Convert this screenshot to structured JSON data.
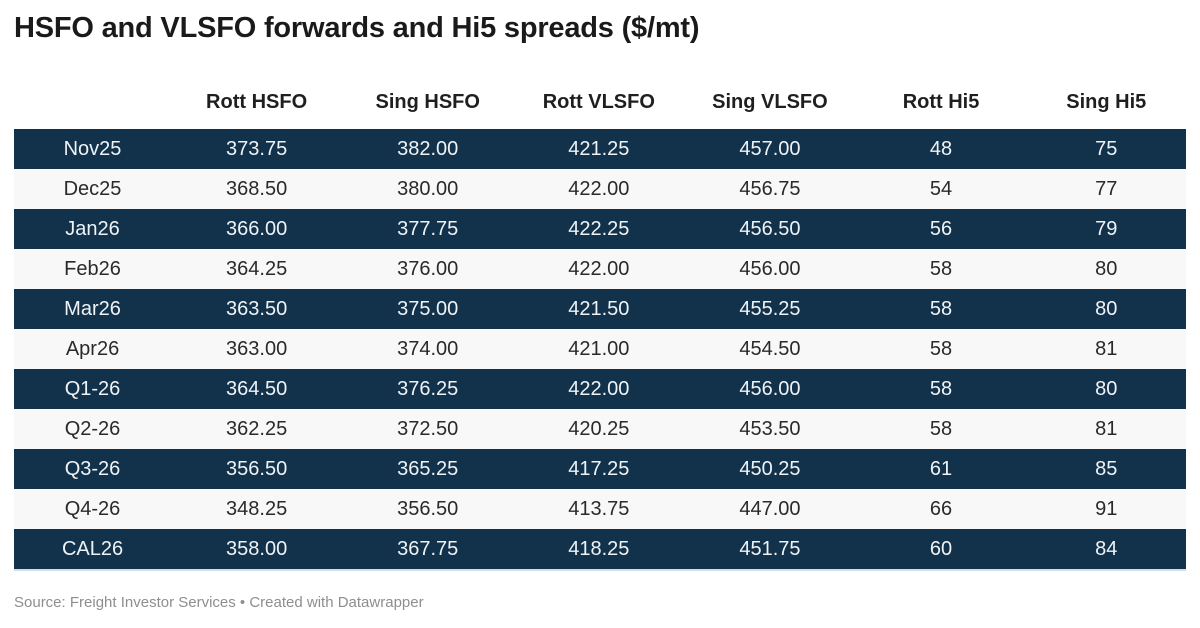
{
  "title": "HSFO and VLSFO forwards and Hi5 spreads ($/mt)",
  "table": {
    "columns": [
      "",
      "Rott HSFO",
      "Sing HSFO",
      "Rott VLSFO",
      "Sing VLSFO",
      "Rott Hi5",
      "Sing Hi5"
    ],
    "rows": [
      {
        "label": "Nov25",
        "values": [
          "373.75",
          "382.00",
          "421.25",
          "457.00",
          "48",
          "75"
        ]
      },
      {
        "label": "Dec25",
        "values": [
          "368.50",
          "380.00",
          "422.00",
          "456.75",
          "54",
          "77"
        ]
      },
      {
        "label": "Jan26",
        "values": [
          "366.00",
          "377.75",
          "422.25",
          "456.50",
          "56",
          "79"
        ]
      },
      {
        "label": "Feb26",
        "values": [
          "364.25",
          "376.00",
          "422.00",
          "456.00",
          "58",
          "80"
        ]
      },
      {
        "label": "Mar26",
        "values": [
          "363.50",
          "375.00",
          "421.50",
          "455.25",
          "58",
          "80"
        ]
      },
      {
        "label": "Apr26",
        "values": [
          "363.00",
          "374.00",
          "421.00",
          "454.50",
          "58",
          "81"
        ]
      },
      {
        "label": "Q1-26",
        "values": [
          "364.50",
          "376.25",
          "422.00",
          "456.00",
          "58",
          "80"
        ]
      },
      {
        "label": "Q2-26",
        "values": [
          "362.25",
          "372.50",
          "420.25",
          "453.50",
          "58",
          "81"
        ]
      },
      {
        "label": "Q3-26",
        "values": [
          "356.50",
          "365.25",
          "417.25",
          "450.25",
          "61",
          "85"
        ]
      },
      {
        "label": "Q4-26",
        "values": [
          "348.25",
          "356.50",
          "413.75",
          "447.00",
          "66",
          "91"
        ]
      },
      {
        "label": "CAL26",
        "values": [
          "358.00",
          "367.75",
          "418.25",
          "451.75",
          "60",
          "84"
        ]
      }
    ]
  },
  "footer": {
    "text": "Source: Freight Investor Services • Created with Datawrapper"
  },
  "colors": {
    "dark_row_bg": "#12314a",
    "dark_row_text": "#eef3f7",
    "light_row_bg": "#f8f8f8",
    "light_row_text": "#2a2a2a",
    "title_color": "#1a1a1a",
    "header_text": "#1f1f1f",
    "footer_color": "#8e8e8e",
    "table_bottom_border": "#d3dfe6"
  },
  "chart_data": {
    "type": "table",
    "title": "HSFO and VLSFO forwards and Hi5 spreads ($/mt)",
    "columns": [
      "",
      "Rott HSFO",
      "Sing HSFO",
      "Rott VLSFO",
      "Sing VLSFO",
      "Rott Hi5",
      "Sing Hi5"
    ],
    "rows": [
      [
        "Nov25",
        373.75,
        382.0,
        421.25,
        457.0,
        48,
        75
      ],
      [
        "Dec25",
        368.5,
        380.0,
        422.0,
        456.75,
        54,
        77
      ],
      [
        "Jan26",
        366.0,
        377.75,
        422.25,
        456.5,
        56,
        79
      ],
      [
        "Feb26",
        364.25,
        376.0,
        422.0,
        456.0,
        58,
        80
      ],
      [
        "Mar26",
        363.5,
        375.0,
        421.5,
        455.25,
        58,
        80
      ],
      [
        "Apr26",
        363.0,
        374.0,
        421.0,
        454.5,
        58,
        81
      ],
      [
        "Q1-26",
        364.5,
        376.25,
        422.0,
        456.0,
        58,
        80
      ],
      [
        "Q2-26",
        362.25,
        372.5,
        420.25,
        453.5,
        58,
        81
      ],
      [
        "Q3-26",
        356.5,
        365.25,
        417.25,
        450.25,
        61,
        85
      ],
      [
        "Q4-26",
        348.25,
        356.5,
        413.75,
        447.0,
        66,
        91
      ],
      [
        "CAL26",
        358.0,
        367.75,
        418.25,
        451.75,
        60,
        84
      ]
    ],
    "source": "Freight Investor Services",
    "tool_attribution": "Created with Datawrapper",
    "row_striping": "odd rows dark navy, even rows light gray",
    "legend_position": "none",
    "grid": false
  }
}
